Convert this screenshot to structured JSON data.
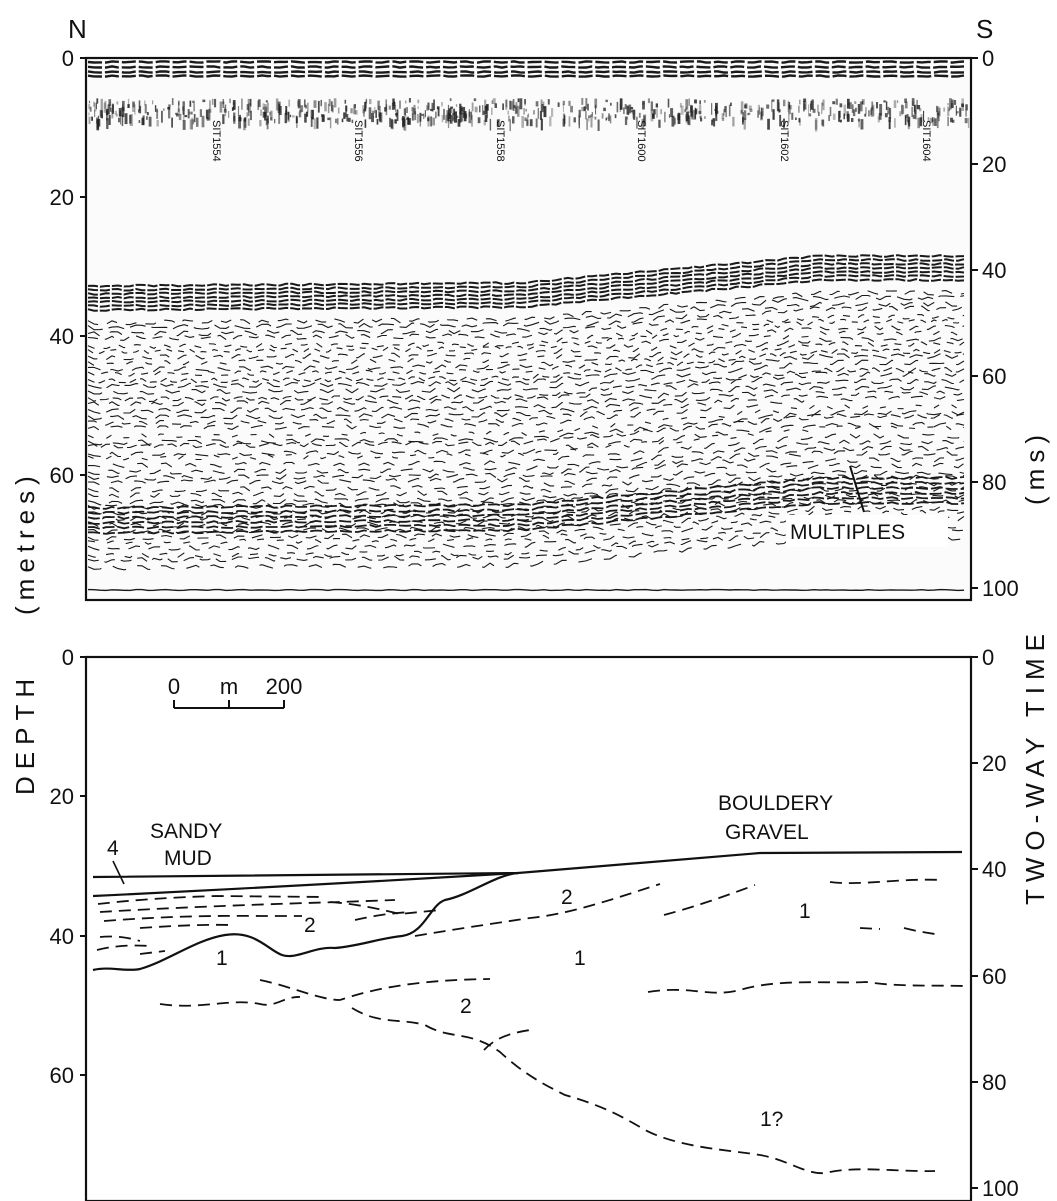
{
  "compass": {
    "left": "N",
    "right": "S"
  },
  "axes": {
    "depth_label": "DEPTH (metres)",
    "depth_word": "DEPTH",
    "depth_unit": "(metres)",
    "time_label": "TWO-WAY TIME (ms)",
    "time_word": "TWO-WAY TIME",
    "time_unit": "(ms)",
    "top_depth_ticks": [
      "0",
      "20",
      "40",
      "60"
    ],
    "top_time_ticks": [
      "0",
      "20",
      "40",
      "60",
      "80",
      "100"
    ],
    "bottom_depth_ticks": [
      "0",
      "20",
      "40",
      "60"
    ],
    "bottom_time_ticks": [
      "0",
      "20",
      "40",
      "60",
      "80",
      "100"
    ]
  },
  "seismic_panel": {
    "shot_labels": [
      "SIT1554",
      "SIT1556",
      "SIT1558",
      "SIT1600",
      "SIT1602",
      "SIT1604"
    ],
    "annotation": "MULTIPLES"
  },
  "interpretation_panel": {
    "scale_bar": {
      "start": "0",
      "unit": "m",
      "end": "200"
    },
    "labels": {
      "sandy": "SANDY",
      "mud": "MUD",
      "bouldery": "BOULDERY",
      "gravel": "GRAVEL",
      "unit4": "4"
    },
    "unit_labels": [
      "2",
      "1",
      "2",
      "1",
      "2",
      "1",
      "1?"
    ]
  }
}
